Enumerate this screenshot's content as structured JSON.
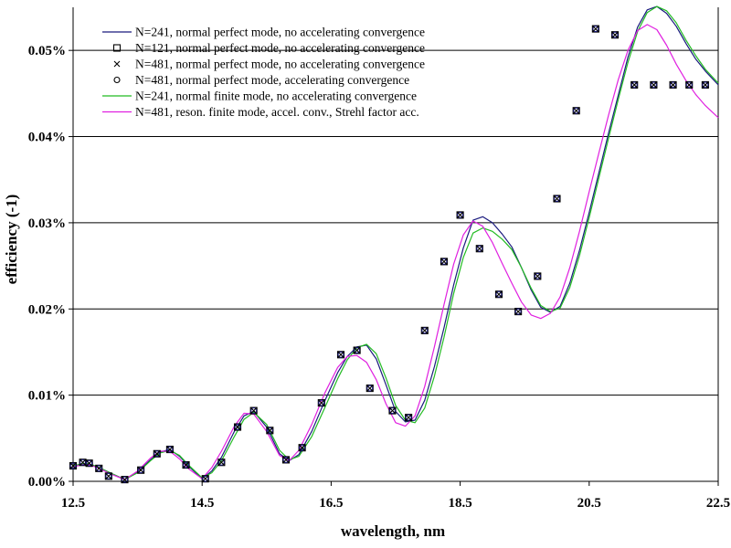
{
  "chart_data": {
    "type": "line",
    "xlabel": "wavelength, nm",
    "ylabel": "efficiency (-1)",
    "xlim": [
      12.5,
      22.5
    ],
    "ylim": [
      0,
      0.055
    ],
    "x_ticks": [
      {
        "value": 12.5,
        "label": "12.5"
      },
      {
        "value": 14.5,
        "label": "14.5"
      },
      {
        "value": 16.5,
        "label": "16.5"
      },
      {
        "value": 18.5,
        "label": "18.5"
      },
      {
        "value": 20.5,
        "label": "20.5"
      },
      {
        "value": 22.5,
        "label": "22.5"
      }
    ],
    "y_ticks": [
      {
        "value": 0.0,
        "label": "0.00%"
      },
      {
        "value": 0.01,
        "label": "0.01%"
      },
      {
        "value": 0.02,
        "label": "0.02%"
      },
      {
        "value": 0.03,
        "label": "0.03%"
      },
      {
        "value": 0.04,
        "label": "0.04%"
      },
      {
        "value": 0.05,
        "label": "0.05%"
      }
    ],
    "grid": "horizontal",
    "legend_position": "top-left",
    "series": [
      {
        "name": "N=241, normal perfect mode, no accelerating convergence",
        "style": "line",
        "color": "#1a1a7e",
        "x": [
          12.5,
          12.7,
          12.8,
          12.9,
          13.1,
          13.3,
          13.5,
          13.7,
          13.85,
          14.0,
          14.15,
          14.3,
          14.5,
          14.65,
          14.8,
          15.0,
          15.15,
          15.3,
          15.5,
          15.7,
          15.85,
          16.0,
          16.2,
          16.4,
          16.6,
          16.75,
          16.9,
          17.05,
          17.2,
          17.35,
          17.5,
          17.65,
          17.8,
          17.95,
          18.1,
          18.25,
          18.4,
          18.55,
          18.7,
          18.85,
          19.0,
          19.15,
          19.3,
          19.45,
          19.6,
          19.75,
          19.9,
          20.05,
          20.2,
          20.35,
          20.5,
          20.65,
          20.8,
          20.95,
          21.1,
          21.25,
          21.4,
          21.55,
          21.7,
          21.85,
          22.0,
          22.15,
          22.3,
          22.5
        ],
        "y": [
          0.0018,
          0.0021,
          0.0019,
          0.0016,
          0.0009,
          0.0002,
          0.0011,
          0.0025,
          0.0034,
          0.0037,
          0.0029,
          0.0017,
          0.0003,
          0.0012,
          0.0028,
          0.0058,
          0.0076,
          0.0081,
          0.0063,
          0.0032,
          0.0024,
          0.0031,
          0.0058,
          0.0093,
          0.0126,
          0.0145,
          0.0156,
          0.0158,
          0.0142,
          0.0112,
          0.0081,
          0.0069,
          0.0071,
          0.0094,
          0.0133,
          0.0178,
          0.0228,
          0.0271,
          0.0303,
          0.0307,
          0.03,
          0.0287,
          0.0272,
          0.0248,
          0.0222,
          0.0202,
          0.0196,
          0.0203,
          0.023,
          0.0268,
          0.0312,
          0.0358,
          0.0404,
          0.0448,
          0.0492,
          0.0527,
          0.0547,
          0.0551,
          0.0543,
          0.0528,
          0.0508,
          0.049,
          0.0476,
          0.046
        ]
      },
      {
        "name": "N=121, normal perfect mode, no accelerating convergence",
        "style": "square",
        "color": "#000000",
        "x": [
          12.5,
          12.65,
          12.75,
          12.9,
          13.05,
          13.3,
          13.55,
          13.8,
          14.0,
          14.25,
          14.55,
          14.8,
          15.05,
          15.3,
          15.55,
          15.8,
          16.05,
          16.35,
          16.65,
          16.9,
          17.1,
          17.45,
          17.7,
          17.95,
          18.25,
          18.5,
          18.8,
          19.1,
          19.4,
          19.7,
          20.0,
          20.3,
          20.6,
          20.9,
          21.2,
          21.5,
          21.8,
          22.05,
          22.3
        ],
        "y": [
          0.0018,
          0.0022,
          0.0021,
          0.0015,
          0.0006,
          0.0002,
          0.0013,
          0.0032,
          0.0037,
          0.0019,
          0.0003,
          0.0022,
          0.0063,
          0.0082,
          0.0059,
          0.0025,
          0.0039,
          0.0091,
          0.0147,
          0.0152,
          0.0108,
          0.0082,
          0.0074,
          0.0175,
          0.0255,
          0.0309,
          0.027,
          0.0217,
          0.0197,
          0.0238,
          0.0328,
          0.043,
          0.0525,
          0.0518,
          0.046,
          0.046,
          0.046,
          0.046,
          0.046
        ]
      },
      {
        "name": "N=481, normal perfect mode, no accelerating convergence",
        "style": "cross",
        "color": "#000000",
        "x": [],
        "y": []
      },
      {
        "name": "N=481, normal perfect mode, accelerating convergence",
        "style": "circle",
        "color": "#000000",
        "x": [],
        "y": []
      },
      {
        "name": "N=241, normal finite mode, no accelerating convergence",
        "style": "line",
        "color": "#22bb22",
        "x": [
          12.5,
          12.7,
          12.8,
          12.9,
          13.1,
          13.3,
          13.5,
          13.7,
          13.85,
          14.0,
          14.15,
          14.3,
          14.5,
          14.65,
          14.8,
          15.0,
          15.15,
          15.3,
          15.5,
          15.7,
          15.85,
          16.0,
          16.2,
          16.4,
          16.6,
          16.75,
          16.9,
          17.05,
          17.2,
          17.35,
          17.5,
          17.65,
          17.8,
          17.95,
          18.1,
          18.25,
          18.4,
          18.55,
          18.7,
          18.85,
          19.0,
          19.15,
          19.3,
          19.45,
          19.6,
          19.75,
          19.9,
          20.05,
          20.2,
          20.35,
          20.5,
          20.65,
          20.8,
          20.95,
          21.1,
          21.25,
          21.4,
          21.55,
          21.7,
          21.85,
          22.0,
          22.15,
          22.3,
          22.5
        ],
        "y": [
          0.0018,
          0.0021,
          0.0019,
          0.0016,
          0.0009,
          0.0002,
          0.001,
          0.0024,
          0.0033,
          0.0036,
          0.003,
          0.0018,
          0.0004,
          0.001,
          0.0024,
          0.0052,
          0.0072,
          0.008,
          0.0066,
          0.0036,
          0.0025,
          0.0029,
          0.0052,
          0.0085,
          0.0119,
          0.0141,
          0.0155,
          0.0159,
          0.0148,
          0.012,
          0.0088,
          0.0071,
          0.0068,
          0.0085,
          0.0122,
          0.0167,
          0.0218,
          0.026,
          0.0288,
          0.0294,
          0.029,
          0.0281,
          0.0269,
          0.0248,
          0.0224,
          0.0204,
          0.0197,
          0.0201,
          0.0225,
          0.0262,
          0.0306,
          0.0352,
          0.0398,
          0.0443,
          0.0486,
          0.0522,
          0.0544,
          0.0551,
          0.0546,
          0.0532,
          0.0512,
          0.0494,
          0.0478,
          0.0462
        ]
      },
      {
        "name": "N=481, reson. finite mode, accel. conv., Strehl factor acc.",
        "style": "line",
        "color": "#e020e0",
        "x": [
          12.5,
          12.7,
          12.8,
          12.9,
          13.1,
          13.3,
          13.5,
          13.7,
          13.85,
          14.0,
          14.15,
          14.3,
          14.5,
          14.65,
          14.8,
          15.0,
          15.15,
          15.3,
          15.5,
          15.7,
          15.85,
          16.0,
          16.2,
          16.4,
          16.6,
          16.75,
          16.9,
          17.05,
          17.2,
          17.35,
          17.5,
          17.65,
          17.8,
          17.95,
          18.1,
          18.25,
          18.4,
          18.55,
          18.7,
          18.85,
          19.0,
          19.15,
          19.3,
          19.45,
          19.6,
          19.75,
          19.9,
          20.05,
          20.2,
          20.35,
          20.5,
          20.65,
          20.8,
          20.95,
          21.1,
          21.25,
          21.4,
          21.55,
          21.7,
          21.85,
          22.0,
          22.15,
          22.3,
          22.5
        ],
        "y": [
          0.0017,
          0.002,
          0.0018,
          0.0015,
          0.0008,
          0.0002,
          0.0012,
          0.0027,
          0.0035,
          0.0035,
          0.0026,
          0.0014,
          0.0003,
          0.0016,
          0.0035,
          0.0064,
          0.0079,
          0.0078,
          0.0058,
          0.003,
          0.0024,
          0.0036,
          0.0066,
          0.0102,
          0.0132,
          0.0145,
          0.0146,
          0.0138,
          0.0118,
          0.009,
          0.0068,
          0.0064,
          0.0076,
          0.011,
          0.0156,
          0.0205,
          0.0252,
          0.0286,
          0.0302,
          0.0296,
          0.0277,
          0.0253,
          0.023,
          0.0208,
          0.0193,
          0.0189,
          0.0195,
          0.0214,
          0.0248,
          0.029,
          0.0336,
          0.0381,
          0.0425,
          0.0466,
          0.05,
          0.0523,
          0.053,
          0.0524,
          0.0506,
          0.0484,
          0.0465,
          0.0449,
          0.0436,
          0.0422
        ]
      }
    ]
  }
}
